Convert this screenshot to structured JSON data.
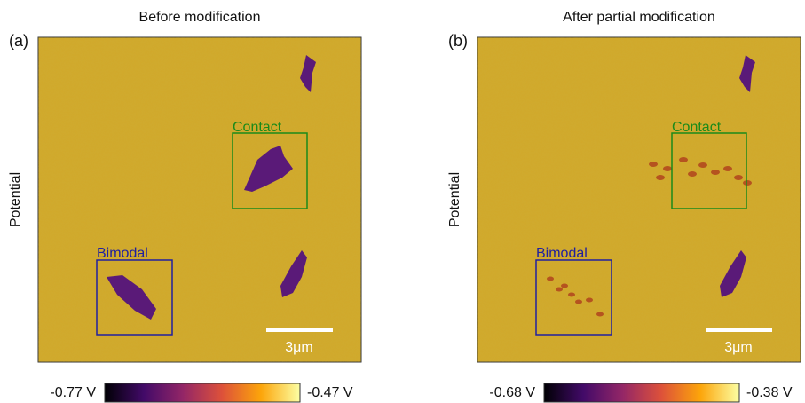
{
  "panels": [
    {
      "label": "(a)",
      "title": "Before modification",
      "ylabel": "Potential",
      "boxes": [
        {
          "label": "Contact"
        },
        {
          "label": "Bimodal"
        }
      ],
      "scalebar": "3μm",
      "colorbar": {
        "min": "-0.77 V",
        "max": "-0.47 V"
      }
    },
    {
      "label": "(b)",
      "title": "After partial modification",
      "ylabel": "Potential",
      "boxes": [
        {
          "label": "Contact"
        },
        {
          "label": "Bimodal"
        }
      ],
      "scalebar": "3μm",
      "colorbar": {
        "min": "-0.68 V",
        "max": "-0.38 V"
      }
    }
  ]
}
